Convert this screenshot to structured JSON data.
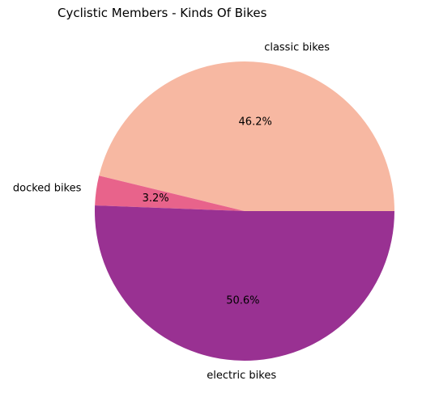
{
  "chart_data": {
    "type": "pie",
    "title": "Cyclistic Members - Kinds Of Bikes",
    "slices": [
      {
        "label": "classic bikes",
        "value": 46.2,
        "pct_label": "46.2%",
        "color": "#f7b8a2"
      },
      {
        "label": "docked bikes",
        "value": 3.2,
        "pct_label": "3.2%",
        "color": "#e8638b"
      },
      {
        "label": "electric bikes",
        "value": 50.6,
        "pct_label": "50.6%",
        "color": "#993192"
      }
    ],
    "start_angle_deg": 0,
    "direction": "counterclockwise",
    "legend": "none"
  }
}
